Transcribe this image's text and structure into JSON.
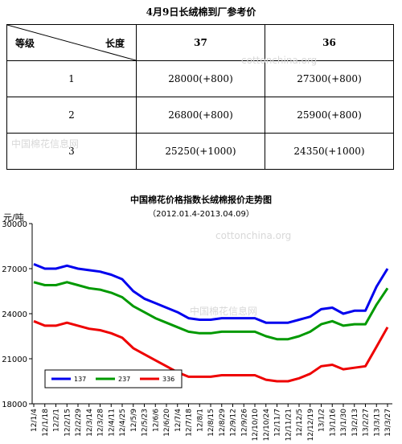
{
  "table": {
    "title": "4月9日长绒棉到厂参考价",
    "header_grade": "等级",
    "header_length": "长度",
    "columns": [
      "37",
      "36"
    ],
    "rows": [
      {
        "grade": "1",
        "values": [
          "28000(+800)",
          "27300(+800)"
        ]
      },
      {
        "grade": "2",
        "values": [
          "26800(+800)",
          "25900(+800)"
        ]
      },
      {
        "grade": "3",
        "values": [
          "25250(+1000)",
          "24350(+1000)"
        ]
      }
    ]
  },
  "watermarks": [
    "cottonchina.org",
    "中国棉花信息网",
    "cottonchina.org",
    "中国棉花信息网"
  ],
  "chart_data": {
    "type": "line",
    "title": "中国棉花价格指数长绒棉报价走势图",
    "subtitle": "（2012.01.4-2013.04.09）",
    "ylabel": "元/吨",
    "ylim": [
      18000,
      30000
    ],
    "yticks": [
      18000,
      21000,
      24000,
      27000,
      30000
    ],
    "grid": false,
    "legend_position": "bottom-left",
    "categories": [
      "12/1/4",
      "12/1/18",
      "12/2/1",
      "12/2/15",
      "12/2/29",
      "12/3/14",
      "12/3/28",
      "12/4/11",
      "12/4/25",
      "12/5/9",
      "12/5/23",
      "12/6/6",
      "12/6/20",
      "12/7/4",
      "12/7/18",
      "12/8/1",
      "12/8/15",
      "12/8/29",
      "12/9/12",
      "12/9/26",
      "12/10/10",
      "12/10/24",
      "12/11/7",
      "12/11/21",
      "12/12/5",
      "12/12/19",
      "13/1/2",
      "13/1/16",
      "13/1/30",
      "13/2/13",
      "13/2/27",
      "13/3/13",
      "13/3/27"
    ],
    "series": [
      {
        "name": "137",
        "color": "#0000ee",
        "values": [
          27300,
          27000,
          27000,
          27200,
          27000,
          26900,
          26800,
          26600,
          26300,
          25500,
          25000,
          24700,
          24400,
          24100,
          23700,
          23600,
          23600,
          23700,
          23700,
          23700,
          23700,
          23400,
          23400,
          23400,
          23600,
          23800,
          24300,
          24400,
          24000,
          24200,
          24200,
          25800,
          27000
        ]
      },
      {
        "name": "237",
        "color": "#009900",
        "values": [
          26100,
          25900,
          25900,
          26100,
          25900,
          25700,
          25600,
          25400,
          25100,
          24500,
          24100,
          23700,
          23400,
          23100,
          22800,
          22700,
          22700,
          22800,
          22800,
          22800,
          22800,
          22500,
          22300,
          22300,
          22500,
          22800,
          23300,
          23500,
          23200,
          23300,
          23300,
          24600,
          25700
        ]
      },
      {
        "name": "336",
        "color": "#ee0000",
        "values": [
          23500,
          23200,
          23200,
          23400,
          23200,
          23000,
          22900,
          22700,
          22400,
          21700,
          21300,
          20900,
          20500,
          20100,
          19800,
          19800,
          19800,
          19900,
          19900,
          19900,
          19900,
          19600,
          19500,
          19500,
          19700,
          20000,
          20500,
          20600,
          20300,
          20400,
          20500,
          21800,
          23100
        ]
      }
    ]
  }
}
